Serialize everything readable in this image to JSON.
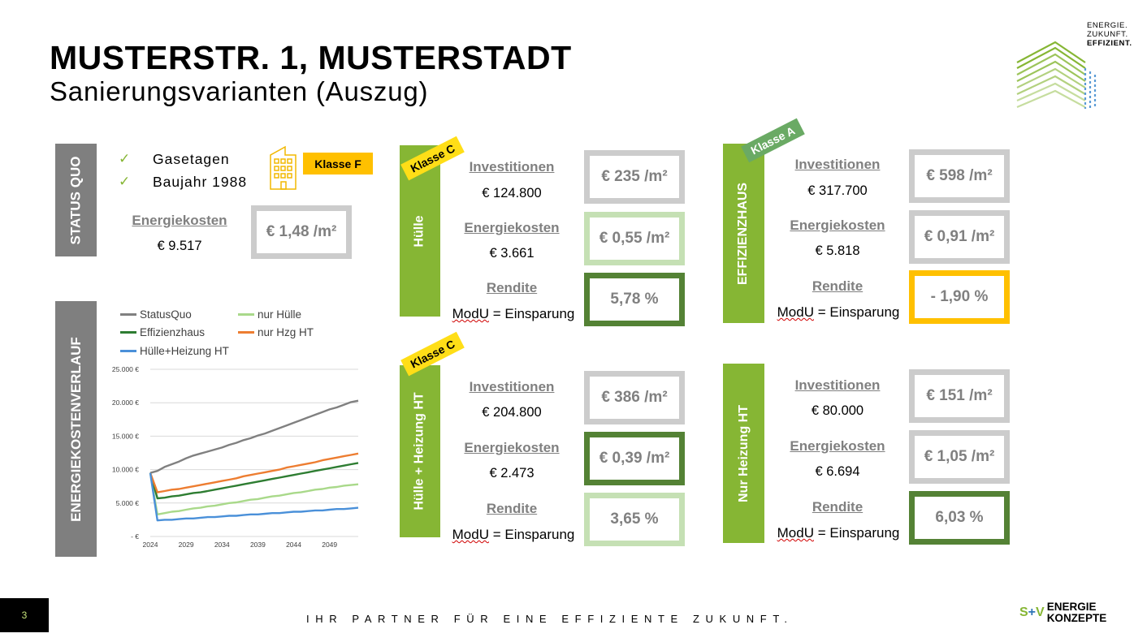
{
  "header": {
    "title": "MUSTERSTR. 1, MUSTERSTADT",
    "subtitle": "Sanierungsvarianten (Auszug)",
    "brand_slogan": [
      "ENERGIE.",
      "ZUKUNFT.",
      "EFFIZIENT."
    ]
  },
  "status_quo": {
    "bar_label": "STATUS QUO",
    "checklist": [
      "Gasetagen",
      "Baujahr 1988"
    ],
    "building_icon": "building-icon",
    "klasse": "Klasse F",
    "energiekosten_label": "Energiekosten",
    "energiekosten_value": "€ 9.517",
    "cost_per_m2": "€ 1,48 /m²"
  },
  "variants": {
    "huelle": {
      "bar_label": "Hülle",
      "klasse": "Klasse C",
      "investitionen_label": "Investitionen",
      "investitionen_value": "€ 124.800",
      "invest_per_m2": "€ 235 /m²",
      "energiekosten_label": "Energiekosten",
      "energiekosten_value": "€ 3.661",
      "energie_per_m2": "€ 0,55 /m²",
      "rendite_label": "Rendite",
      "modu_word": "ModU",
      "modu_rest": " = Einsparung",
      "rendite_value": "5,78 %"
    },
    "effizienzhaus": {
      "bar_label": "EFFIZIENZHAUS",
      "klasse": "Klasse A",
      "investitionen_label": "Investitionen",
      "investitionen_value": "€ 317.700",
      "invest_per_m2": "€ 598 /m²",
      "energiekosten_label": "Energiekosten",
      "energiekosten_value": "€ 5.818",
      "energie_per_m2": "€ 0,91 /m²",
      "rendite_label": "Rendite",
      "modu_word": "ModU",
      "modu_rest": " = Einsparung",
      "rendite_value": "- 1,90 %"
    },
    "huelle_heizung": {
      "bar_label": "Hülle + Heizung HT",
      "klasse": "Klasse C",
      "investitionen_label": "Investitionen",
      "investitionen_value": "€ 204.800",
      "invest_per_m2": "€ 386 /m²",
      "energiekosten_label": "Energiekosten",
      "energiekosten_value": "€ 2.473",
      "energie_per_m2": "€ 0,39 /m²",
      "rendite_label": "Rendite",
      "modu_word": "ModU",
      "modu_rest": " = Einsparung",
      "rendite_value": "3,65 %"
    },
    "nur_heizung": {
      "bar_label": "Nur Heizung HT",
      "investitionen_label": "Investitionen",
      "investitionen_value": "€ 80.000",
      "invest_per_m2": "€ 151 /m²",
      "energiekosten_label": "Energiekosten",
      "energiekosten_value": "€ 6.694",
      "energie_per_m2": "€ 1,05 /m²",
      "rendite_label": "Rendite",
      "modu_word": "ModU",
      "modu_rest": " = Einsparung",
      "rendite_value": "6,03 %"
    }
  },
  "chart_section": {
    "bar_label": "ENERGIEKOSTENVERLAUF"
  },
  "chart_data": {
    "type": "line",
    "title": "",
    "xlabel": "",
    "ylabel": "",
    "x": [
      2024,
      2025,
      2026,
      2027,
      2028,
      2029,
      2030,
      2031,
      2032,
      2033,
      2034,
      2035,
      2036,
      2037,
      2038,
      2039,
      2040,
      2041,
      2042,
      2043,
      2044,
      2045,
      2046,
      2047,
      2048,
      2049,
      2050,
      2051,
      2052,
      2053
    ],
    "x_ticks": [
      2024,
      2029,
      2034,
      2039,
      2044,
      2049
    ],
    "ylim": [
      0,
      25000
    ],
    "y_ticks": [
      0,
      5000,
      10000,
      15000,
      20000,
      25000
    ],
    "y_tick_labels": [
      "-  €",
      "5.000 €",
      "10.000 €",
      "15.000 €",
      "20.000 €",
      "25.000 €"
    ],
    "grid": "horizontal",
    "legend_position": "top",
    "series": [
      {
        "name": "StatusQuo",
        "color": "#808080",
        "values": [
          9500,
          9800,
          10400,
          10800,
          11200,
          11700,
          12100,
          12400,
          12700,
          13000,
          13300,
          13700,
          14000,
          14400,
          14700,
          15100,
          15400,
          15800,
          16200,
          16600,
          17000,
          17400,
          17800,
          18200,
          18600,
          19000,
          19300,
          19700,
          20100,
          20300
        ]
      },
      {
        "name": "nur Hülle",
        "color": "#a9d98a",
        "values": [
          9500,
          3300,
          3500,
          3700,
          3800,
          4000,
          4200,
          4300,
          4500,
          4600,
          4800,
          5000,
          5100,
          5300,
          5500,
          5600,
          5800,
          6000,
          6100,
          6300,
          6500,
          6600,
          6800,
          7000,
          7100,
          7300,
          7400,
          7600,
          7700,
          7800
        ]
      },
      {
        "name": "Effizienzhaus",
        "color": "#2e7d32",
        "values": [
          9500,
          5700,
          5800,
          6000,
          6100,
          6300,
          6500,
          6600,
          6800,
          7000,
          7200,
          7400,
          7600,
          7800,
          8000,
          8200,
          8400,
          8600,
          8800,
          9000,
          9200,
          9400,
          9600,
          9800,
          10000,
          10200,
          10400,
          10600,
          10800,
          11000
        ]
      },
      {
        "name": "nur Hzg HT",
        "color": "#ed7d31",
        "values": [
          9500,
          6600,
          6800,
          7000,
          7100,
          7300,
          7500,
          7700,
          7900,
          8100,
          8300,
          8500,
          8700,
          9000,
          9200,
          9400,
          9600,
          9800,
          10000,
          10300,
          10500,
          10700,
          10900,
          11100,
          11400,
          11600,
          11800,
          12000,
          12200,
          12400
        ]
      },
      {
        "name": "Hülle+Heizung HT",
        "color": "#4a90d9",
        "values": [
          9500,
          2400,
          2500,
          2500,
          2600,
          2700,
          2700,
          2800,
          2900,
          2900,
          3000,
          3100,
          3100,
          3200,
          3300,
          3300,
          3400,
          3500,
          3500,
          3600,
          3700,
          3700,
          3800,
          3900,
          3900,
          4000,
          4100,
          4100,
          4200,
          4300
        ]
      }
    ]
  },
  "footer": {
    "page_number": "3",
    "tagline": "IHR PARTNER FÜR EINE EFFIZIENTE ZUKUNFT.",
    "company_mark_s": "S",
    "company_mark_plus": "+",
    "company_mark_v": "V",
    "company_line1": "ENERGIE",
    "company_line2": "KONZEPTE"
  }
}
